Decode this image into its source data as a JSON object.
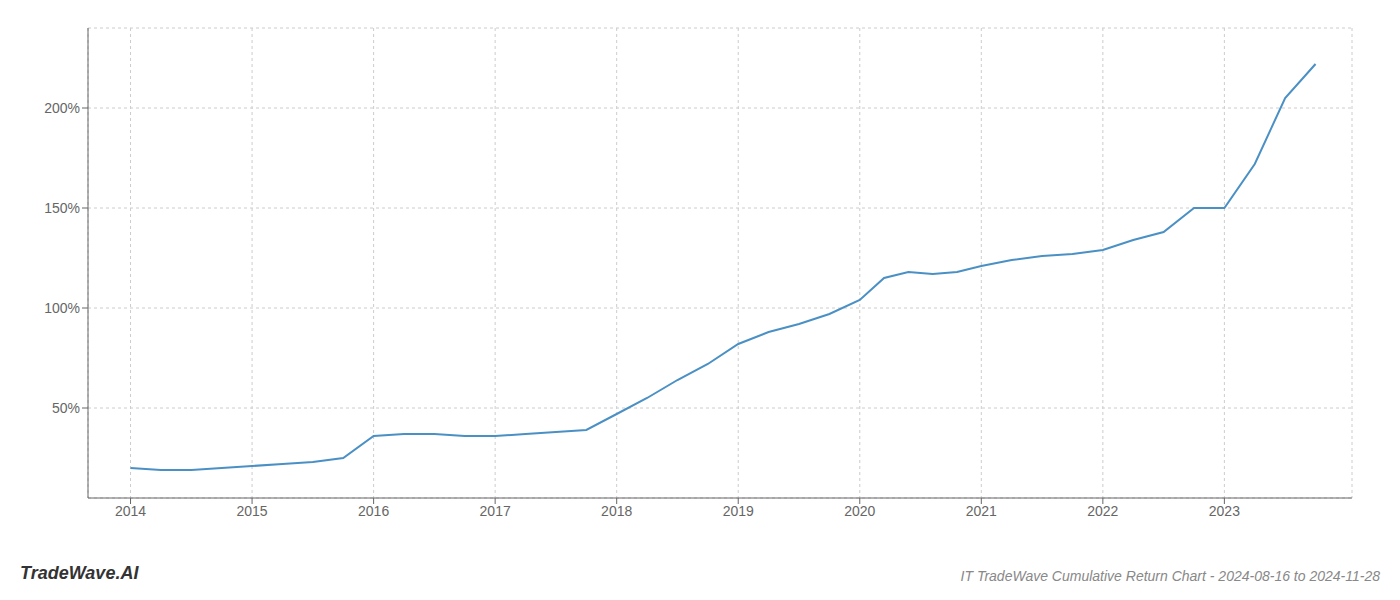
{
  "chart_data": {
    "type": "line",
    "title": "IT TradeWave Cumulative Return Chart - 2024-08-16 to 2024-11-28",
    "annotations": [
      "TradeWave.AI"
    ],
    "x": [
      2014.0,
      2014.25,
      2014.5,
      2014.75,
      2015.0,
      2015.25,
      2015.5,
      2015.75,
      2016.0,
      2016.25,
      2016.5,
      2016.75,
      2017.0,
      2017.25,
      2017.5,
      2017.75,
      2018.0,
      2018.25,
      2018.5,
      2018.75,
      2019.0,
      2019.25,
      2019.5,
      2019.75,
      2020.0,
      2020.2,
      2020.4,
      2020.6,
      2020.8,
      2021.0,
      2021.25,
      2021.5,
      2021.75,
      2022.0,
      2022.25,
      2022.5,
      2022.75,
      2023.0,
      2023.25,
      2023.5,
      2023.75
    ],
    "values": [
      20,
      19,
      19,
      20,
      21,
      22,
      23,
      25,
      36,
      37,
      37,
      36,
      36,
      37,
      38,
      39,
      47,
      55,
      64,
      72,
      82,
      88,
      92,
      97,
      104,
      115,
      118,
      117,
      118,
      121,
      124,
      126,
      127,
      129,
      134,
      138,
      150,
      150,
      172,
      205,
      222
    ],
    "color": "#4a90c4",
    "xlim": [
      2013.65,
      2024.05
    ],
    "ylim": [
      5,
      240
    ],
    "xticks": [
      2014,
      2015,
      2016,
      2017,
      2018,
      2019,
      2020,
      2021,
      2022,
      2023
    ],
    "yticks": [
      {
        "value": 50,
        "label": "50%"
      },
      {
        "value": 100,
        "label": "100%"
      },
      {
        "value": 150,
        "label": "150%"
      },
      {
        "value": 200,
        "label": "200%"
      }
    ],
    "grid": true
  }
}
